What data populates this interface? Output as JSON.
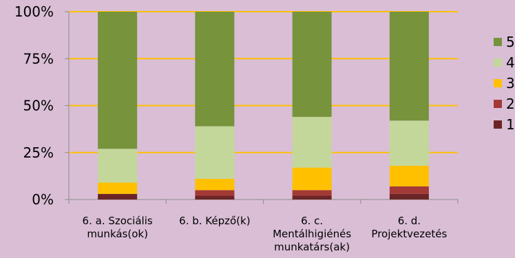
{
  "chart_data": {
    "type": "bar",
    "stacked": true,
    "percent_stacked": true,
    "categories": [
      [
        "6. a. Szociális",
        "munkás(ok)"
      ],
      [
        "6. b. Képző(k)"
      ],
      [
        "6. c.",
        "Mentálhigiénés",
        "munkatárs(ak)"
      ],
      [
        "6. d.",
        "Projektvezetés"
      ]
    ],
    "series": [
      {
        "name": "1",
        "color": "#6b2526",
        "values": [
          3,
          2,
          2,
          3
        ]
      },
      {
        "name": "2",
        "color": "#a33a36",
        "values": [
          0,
          3,
          3,
          4
        ]
      },
      {
        "name": "3",
        "color": "#ffc000",
        "values": [
          6,
          6,
          12,
          11
        ]
      },
      {
        "name": "4",
        "color": "#c4d79b",
        "values": [
          18,
          28,
          27,
          24
        ]
      },
      {
        "name": "5",
        "color": "#77933c",
        "values": [
          73,
          61,
          56,
          58
        ]
      }
    ],
    "y_ticks": [
      "0%",
      "25%",
      "50%",
      "75%",
      "100%"
    ],
    "y_tick_values": [
      0,
      25,
      50,
      75,
      100
    ],
    "ylim": [
      0,
      100
    ],
    "grid": true,
    "gridline_color": "#ffc000",
    "legend_position": "right"
  }
}
